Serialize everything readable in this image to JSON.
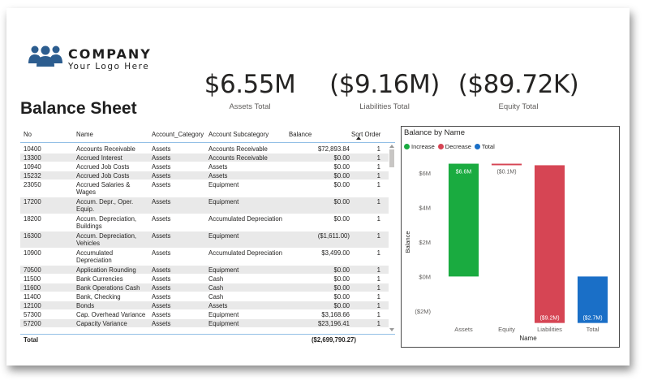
{
  "logo": {
    "name": "COMPANY",
    "tagline": "Your Logo Here",
    "icon": "people-group-icon",
    "color": "#2c5d8f"
  },
  "page": {
    "title": "Balance Sheet"
  },
  "kpis": [
    {
      "value": "$6.55M",
      "label": "Assets Total"
    },
    {
      "value": "($9.16M)",
      "label": "Liabilities Total"
    },
    {
      "value": "($89.72K)",
      "label": "Equity Total"
    }
  ],
  "table": {
    "headers": {
      "no": "No",
      "name": "Name",
      "category": "Account_Category",
      "subcategory": "Account Subcategory",
      "balance": "Balance",
      "sort_order": "Sort Order"
    },
    "rows": [
      {
        "no": "10400",
        "name": "Accounts Receivable",
        "category": "Assets",
        "subcategory": "Accounts Receivable",
        "balance": "$72,893.84",
        "sort": "1"
      },
      {
        "no": "13300",
        "name": "Accrued Interest",
        "category": "Assets",
        "subcategory": "Accounts Receivable",
        "balance": "$0.00",
        "sort": "1"
      },
      {
        "no": "10940",
        "name": "Accrued Job Costs",
        "category": "Assets",
        "subcategory": "Assets",
        "balance": "$0.00",
        "sort": "1"
      },
      {
        "no": "15232",
        "name": "Accrued Job Costs",
        "category": "Assets",
        "subcategory": "Assets",
        "balance": "$0.00",
        "sort": "1"
      },
      {
        "no": "23050",
        "name": "Accrued Salaries & Wages",
        "category": "Assets",
        "subcategory": "Equipment",
        "balance": "$0.00",
        "sort": "1"
      },
      {
        "no": "17200",
        "name": "Accum. Depr., Oper. Equip.",
        "category": "Assets",
        "subcategory": "Equipment",
        "balance": "$0.00",
        "sort": "1"
      },
      {
        "no": "18200",
        "name": "Accum. Depreciation, Buildings",
        "category": "Assets",
        "subcategory": "Accumulated Depreciation",
        "balance": "$0.00",
        "sort": "1"
      },
      {
        "no": "16300",
        "name": "Accum. Depreciation, Vehicles",
        "category": "Assets",
        "subcategory": "Equipment",
        "balance": "($1,611.00)",
        "sort": "1"
      },
      {
        "no": "10900",
        "name": "Accumulated Depreciation",
        "category": "Assets",
        "subcategory": "Accumulated Depreciation",
        "balance": "$3,499.00",
        "sort": "1"
      },
      {
        "no": "70500",
        "name": "Application Rounding",
        "category": "Assets",
        "subcategory": "Equipment",
        "balance": "$0.00",
        "sort": "1"
      },
      {
        "no": "11500",
        "name": "Bank Currencies",
        "category": "Assets",
        "subcategory": "Cash",
        "balance": "$0.00",
        "sort": "1"
      },
      {
        "no": "11600",
        "name": "Bank Operations Cash",
        "category": "Assets",
        "subcategory": "Cash",
        "balance": "$0.00",
        "sort": "1"
      },
      {
        "no": "11400",
        "name": "Bank, Checking",
        "category": "Assets",
        "subcategory": "Cash",
        "balance": "$0.00",
        "sort": "1"
      },
      {
        "no": "12100",
        "name": "Bonds",
        "category": "Assets",
        "subcategory": "Assets",
        "balance": "$0.00",
        "sort": "1"
      },
      {
        "no": "57300",
        "name": "Cap. Overhead Variance",
        "category": "Assets",
        "subcategory": "Equipment",
        "balance": "$3,168.66",
        "sort": "1"
      },
      {
        "no": "57200",
        "name": "Capacity Variance",
        "category": "Assets",
        "subcategory": "Equipment",
        "balance": "$23,196.41",
        "sort": "1"
      }
    ],
    "total": {
      "label": "Total",
      "balance": "($2,699,790.27)"
    }
  },
  "chart_data": {
    "type": "waterfall",
    "title": "Balance by Name",
    "legend": [
      {
        "name": "Increase",
        "color": "#1aab40"
      },
      {
        "name": "Decrease",
        "color": "#d64554"
      },
      {
        "name": "Total",
        "color": "#1a6fc7"
      }
    ],
    "xlabel": "Name",
    "ylabel": "Balance",
    "ylim": [
      -3,
      7
    ],
    "yticks": [
      6,
      4,
      2,
      0,
      -2
    ],
    "ytick_labels": [
      "$6M",
      "$4M",
      "$2M",
      "$0M",
      "($2M)"
    ],
    "categories": [
      "Assets",
      "Equity",
      "Liabilities",
      "Total"
    ],
    "values": [
      6.55,
      -0.09,
      -9.16,
      -2.7
    ],
    "kinds": [
      "increase",
      "decrease",
      "decrease",
      "total"
    ],
    "data_labels": [
      "$6.6M",
      "($0.1M)",
      "($9.2M)",
      "($2.7M)"
    ]
  }
}
